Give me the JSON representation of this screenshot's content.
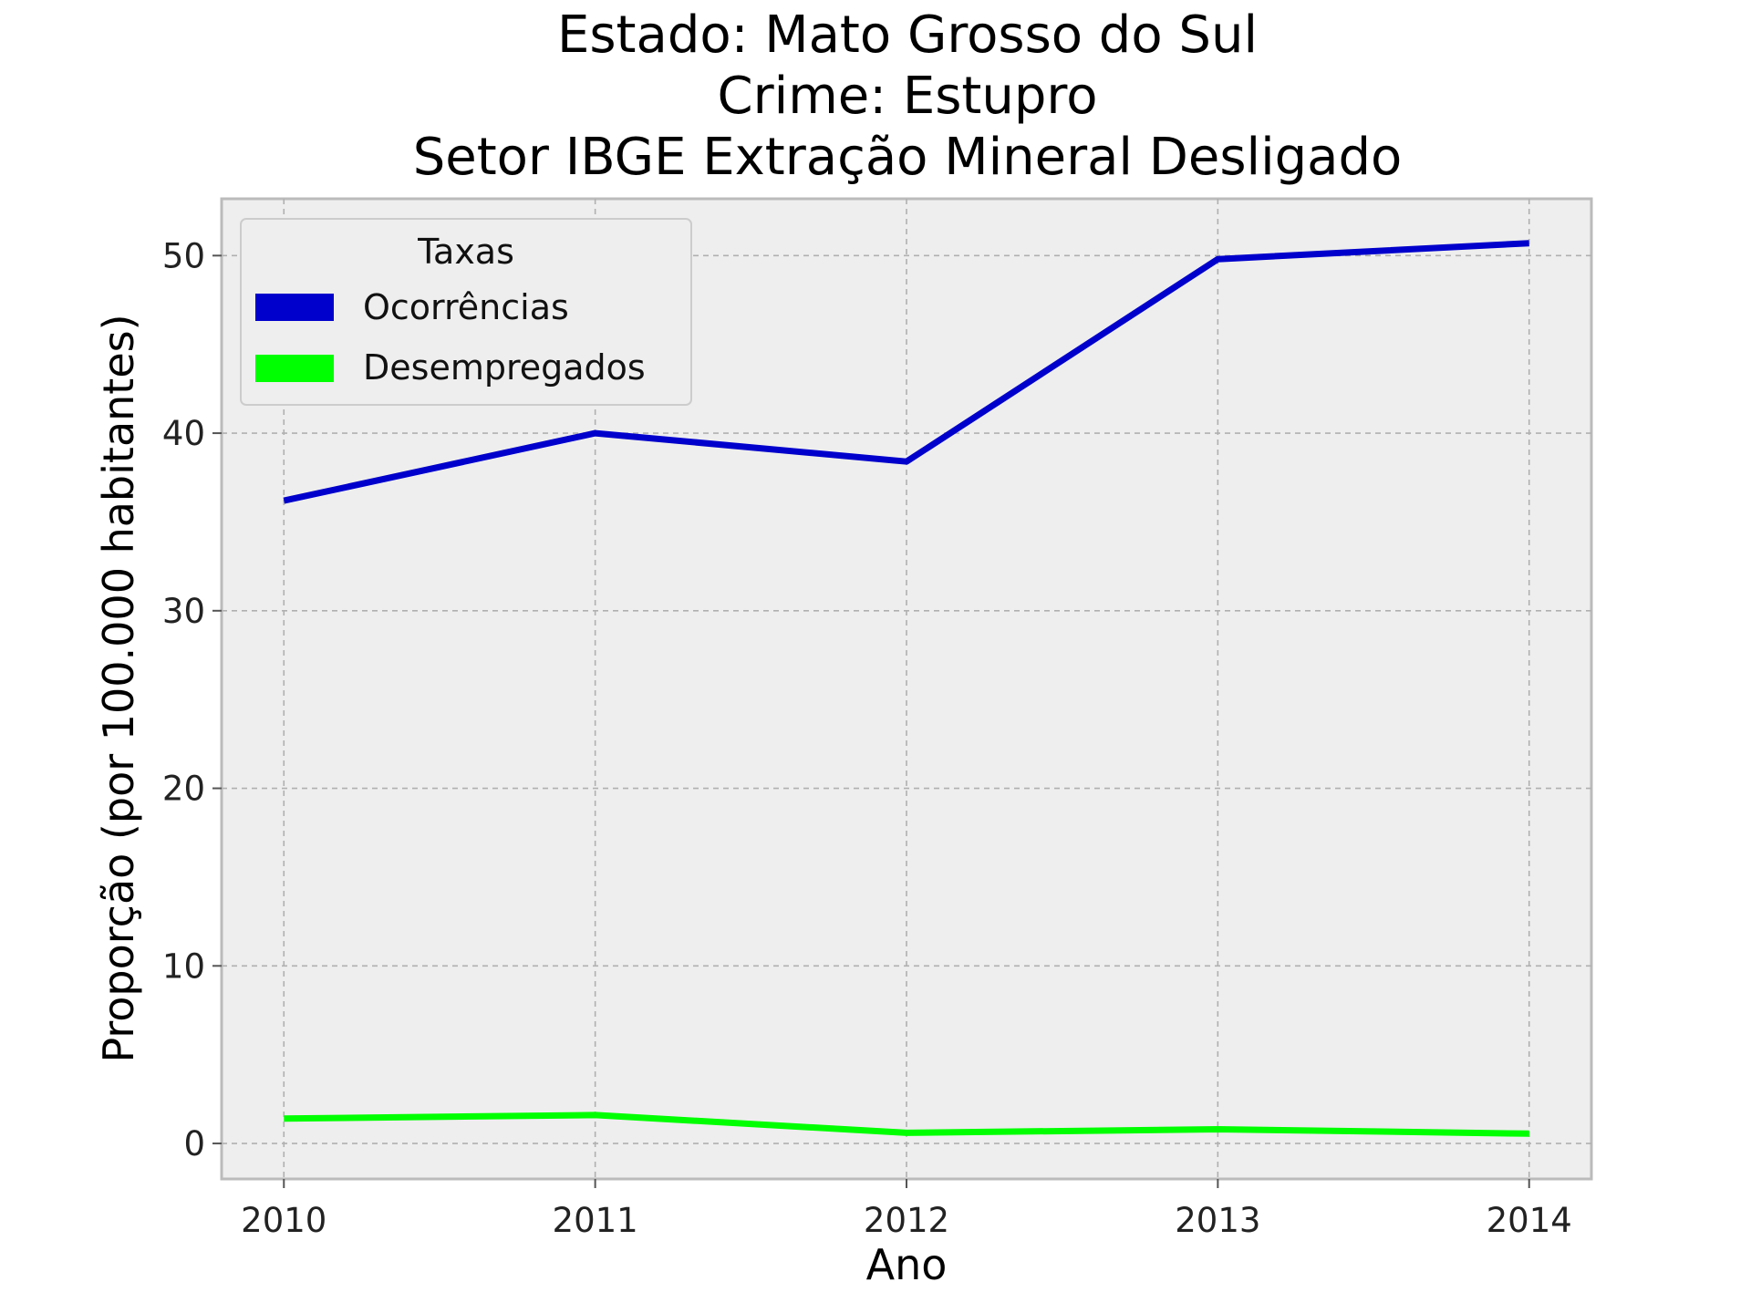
{
  "chart_data": {
    "type": "line",
    "title": [
      "Estado: Mato Grosso do Sul",
      "Crime: Estupro",
      "Setor IBGE  Extração Mineral   Desligado"
    ],
    "xlabel": "Ano",
    "ylabel": "Proporção (por 100.000 habitantes)",
    "x": [
      2010,
      2011,
      2012,
      2013,
      2014
    ],
    "x_tick_labels": [
      "2010",
      "2011",
      "2012",
      "2013",
      "2014"
    ],
    "y_ticks": [
      0,
      10,
      20,
      30,
      40,
      50
    ],
    "y_tick_labels": [
      "0",
      "10",
      "20",
      "30",
      "40",
      "50"
    ],
    "xlim": [
      2009.8,
      2014.2
    ],
    "ylim": [
      -2,
      53.2
    ],
    "grid": true,
    "legend": {
      "title": "Taxas",
      "placement": "top-left"
    },
    "series": [
      {
        "name": "Ocorrências",
        "color": "#0000cc",
        "values": [
          36.2,
          40.0,
          38.4,
          49.8,
          50.7
        ]
      },
      {
        "name": "Desempregados",
        "color": "#00ff00",
        "values": [
          1.4,
          1.6,
          0.6,
          0.8,
          0.55
        ]
      }
    ]
  }
}
